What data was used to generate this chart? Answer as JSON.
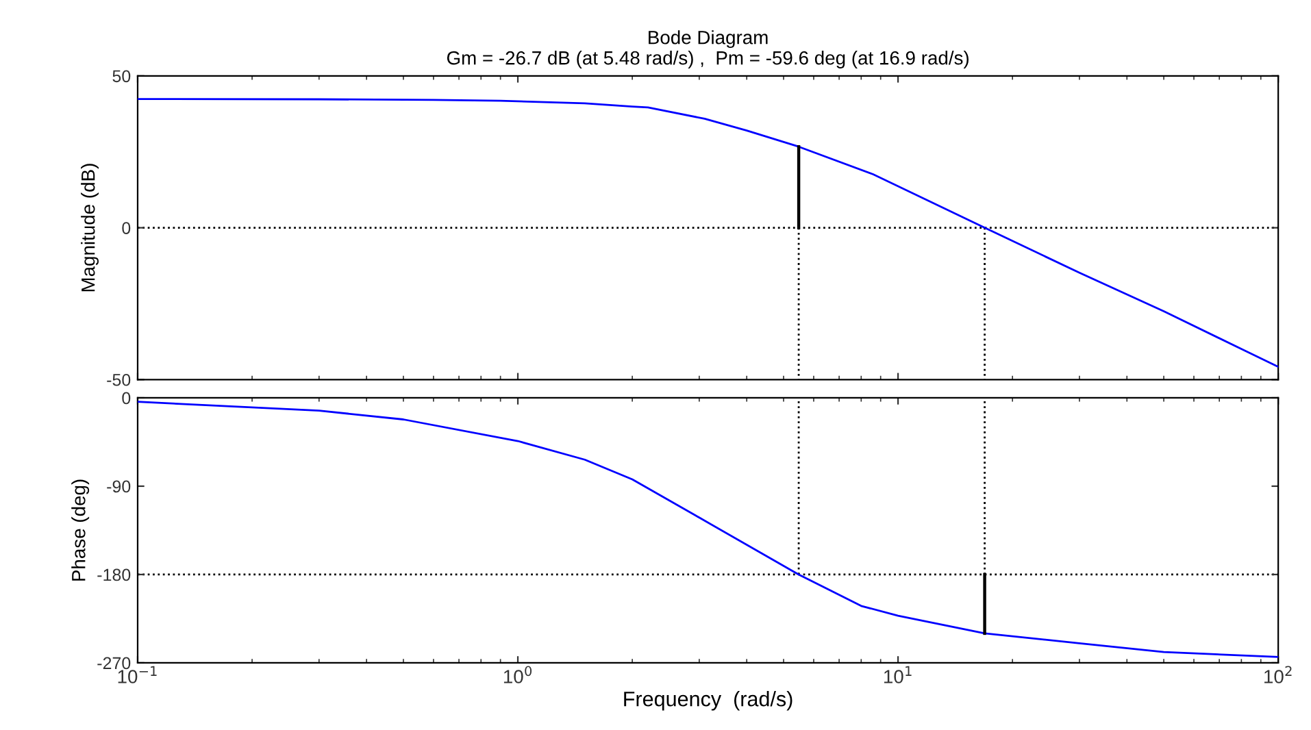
{
  "chart_data": [
    {
      "type": "line",
      "title": "Bode Diagram",
      "subtitle": "Gm = -26.7 dB (at 5.48 rad/s) ,  Pm = -59.6 deg (at 16.9 rad/s)",
      "ylabel": "Magnitude (dB)",
      "log": "x",
      "xlim": [
        0.1,
        100
      ],
      "xticks": [
        {
          "value": 0.1,
          "label": null
        },
        {
          "value": 1,
          "label": null
        },
        {
          "value": 10,
          "label": null
        },
        {
          "value": 100,
          "label": null
        }
      ],
      "ylim": [
        -50,
        50
      ],
      "yticks": [
        -50,
        0,
        50
      ],
      "tick_labels": "y",
      "grid": false,
      "series": [
        {
          "color": "#0000ff",
          "x": [
            0.1,
            0.3,
            0.6,
            0.9,
            1.5,
            2.0,
            2.2,
            3.1,
            4.0,
            5.48,
            8.6,
            16.9,
            30,
            50,
            100
          ],
          "values": [
            42.4,
            42.3,
            42.1,
            41.8,
            41,
            39.9,
            39.6,
            35.9,
            32,
            26.7,
            17.6,
            0,
            -14.8,
            -27.5,
            -45.8
          ]
        },
        {
          "color": "#000000",
          "x": [
            5.48,
            5.48
          ],
          "values": [
            0,
            26.7
          ]
        }
      ],
      "ref_lines": [
        {
          "axis": "y",
          "value": 0,
          "color": "#000000",
          "line_style": "dotted"
        },
        {
          "axis": "x",
          "value": 5.48,
          "color": "#000000",
          "line_style": "dotted"
        },
        {
          "axis": "x",
          "value": 16.9,
          "color": "#000000",
          "line_style": "dotted"
        }
      ]
    },
    {
      "type": "line",
      "xlabel": "Frequency  (rad/s)",
      "ylabel": "Phase (deg)",
      "log": "x",
      "xlim": [
        0.1,
        100
      ],
      "xticks": [
        {
          "value": 0.1,
          "label": "10$^{−1}$"
        },
        {
          "value": 1,
          "label": "10$^{0}$"
        },
        {
          "value": 10,
          "label": "10$^{1}$"
        },
        {
          "value": 100,
          "label": "10$^{2}$"
        }
      ],
      "ylim": [
        -270,
        0
      ],
      "yticks": [
        -270,
        -180,
        -90,
        0
      ],
      "grid": false,
      "series": [
        {
          "color": "#0000ff",
          "x": [
            0.1,
            0.3,
            0.5,
            1,
            1.5,
            2,
            3,
            5.48,
            8,
            10,
            16.9,
            30,
            50,
            100
          ],
          "values": [
            -4,
            -13,
            -22,
            -44,
            -63,
            -83,
            -122,
            -180,
            -212,
            -222,
            -240,
            -250,
            -259,
            -264
          ]
        },
        {
          "color": "#000000",
          "x": [
            16.9,
            16.9
          ],
          "values": [
            -180,
            -240
          ]
        }
      ],
      "ref_lines": [
        {
          "axis": "y",
          "value": -180,
          "color": "#000000",
          "line_style": "dotted"
        },
        {
          "axis": "x",
          "value": 5.48,
          "color": "#000000",
          "line_style": "dotted"
        },
        {
          "axis": "x",
          "value": 16.9,
          "color": "#000000",
          "line_style": "dotted"
        }
      ]
    }
  ]
}
